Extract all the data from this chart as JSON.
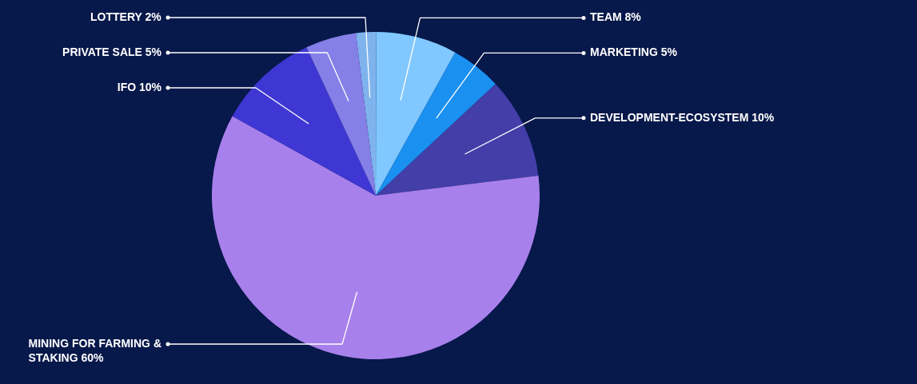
{
  "chart_data": {
    "type": "pie",
    "categories": [
      "LOTTERY 2%",
      "TEAM 8%",
      "MARKETING 5%",
      "DEVELOPMENT-ECOSYSTEM 10%",
      "MINING FOR FARMING & STAKING 60%",
      "IFO 10%",
      "PRIVATE SALE 5%"
    ],
    "values": [
      2,
      8,
      5,
      10,
      60,
      10,
      5
    ],
    "colors": [
      "#7fb3ee",
      "#80c8ff",
      "#1a90f0",
      "#433ea8",
      "#a880ec",
      "#3f37d3",
      "#8480e8"
    ],
    "legend": false
  }
}
